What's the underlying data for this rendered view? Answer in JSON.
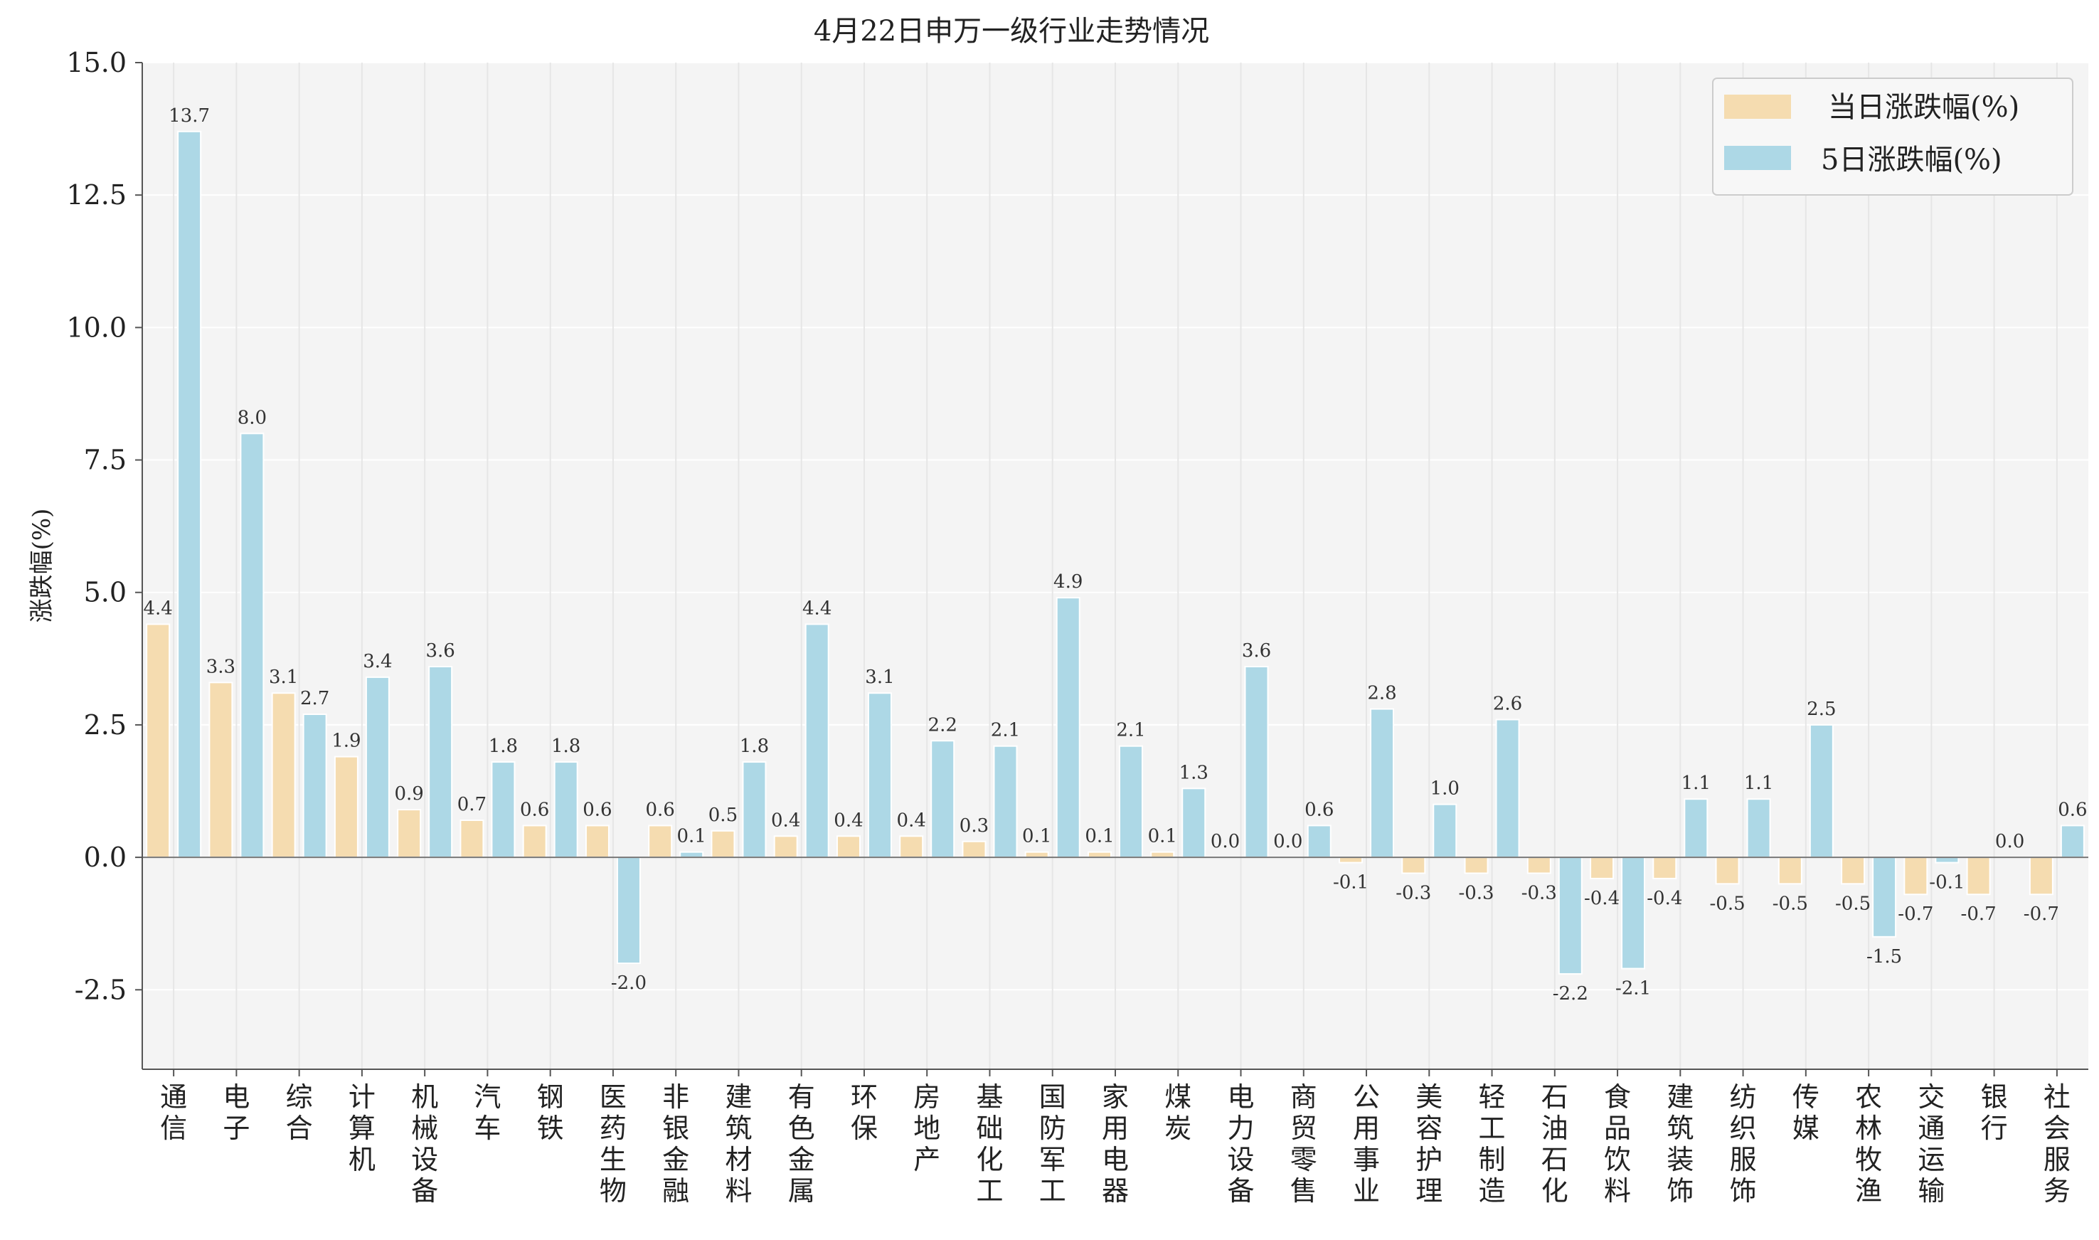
{
  "chart_data": {
    "type": "bar",
    "title": "4月22日申万一级行业走势情况",
    "xlabel": "",
    "ylabel": "涨跌幅(%)",
    "ylim": [
      -4.0,
      15.0
    ],
    "yticks": [
      -2.5,
      0.0,
      2.5,
      5.0,
      7.5,
      10.0,
      12.5,
      15.0
    ],
    "ytick_labels": [
      "-2.5",
      "0.0",
      "2.5",
      "5.0",
      "7.5",
      "10.0",
      "12.5",
      "15.0"
    ],
    "grid": true,
    "legend_position": "top-right",
    "categories": [
      "通信",
      "电子",
      "综合",
      "计算机",
      "机械设备",
      "汽车",
      "钢铁",
      "医药生物",
      "非银金融",
      "建筑材料",
      "有色金属",
      "环保",
      "房地产",
      "基础化工",
      "国防军工",
      "家用电器",
      "煤炭",
      "电力设备",
      "商贸零售",
      "公用事业",
      "美容护理",
      "轻工制造",
      "石油石化",
      "食品饮料",
      "建筑装饰",
      "纺织服饰",
      "传媒",
      "农林牧渔",
      "交通运输",
      "银行",
      "社会服务"
    ],
    "series": [
      {
        "name": "当日涨跌幅(%)",
        "color": "#f5dcb0",
        "values": [
          4.4,
          3.3,
          3.1,
          1.9,
          0.9,
          0.7,
          0.6,
          0.6,
          0.6,
          0.5,
          0.4,
          0.4,
          0.4,
          0.3,
          0.1,
          0.1,
          0.1,
          0.0,
          0.0,
          -0.1,
          -0.3,
          -0.3,
          -0.3,
          -0.4,
          -0.4,
          -0.5,
          -0.5,
          -0.5,
          -0.7,
          -0.7,
          -0.7
        ]
      },
      {
        "name": "5日涨跌幅(%)",
        "color": "#add8e6",
        "values": [
          13.7,
          8.0,
          2.7,
          3.4,
          3.6,
          1.8,
          1.8,
          -2.0,
          0.1,
          1.8,
          4.4,
          3.1,
          2.2,
          2.1,
          4.9,
          2.1,
          1.3,
          3.6,
          0.6,
          2.8,
          1.0,
          2.6,
          -2.2,
          -2.1,
          1.1,
          1.1,
          2.5,
          -1.5,
          -0.1,
          0.0,
          0.6
        ]
      }
    ]
  }
}
